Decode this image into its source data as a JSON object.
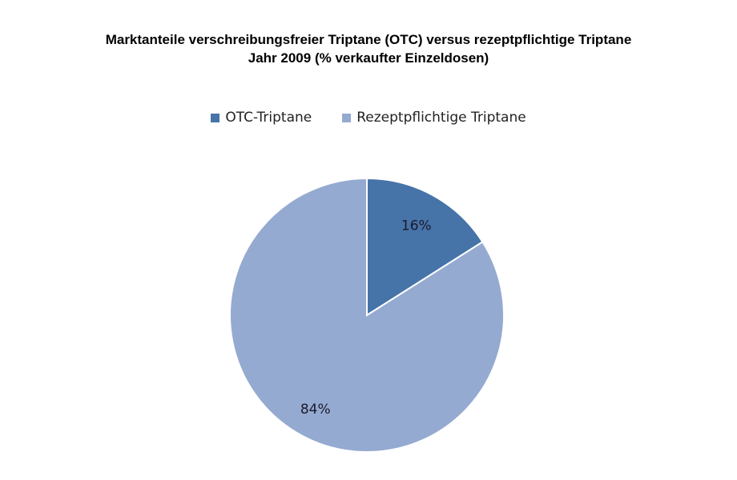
{
  "chart_data": {
    "type": "pie",
    "title": "Marktanteile verschreibungsfreier Triptane (OTC) versus rezeptpflichtige Triptane",
    "subtitle": "Jahr 2009 (% verkaufter Einzeldosen)",
    "legend_position": "top",
    "categories": [
      "OTC-Triptane",
      "Rezeptpflichtige Triptane"
    ],
    "values": [
      16,
      84
    ],
    "data_labels": [
      "16%",
      "84%"
    ],
    "colors": [
      "#4673A8",
      "#95AAD0"
    ]
  }
}
